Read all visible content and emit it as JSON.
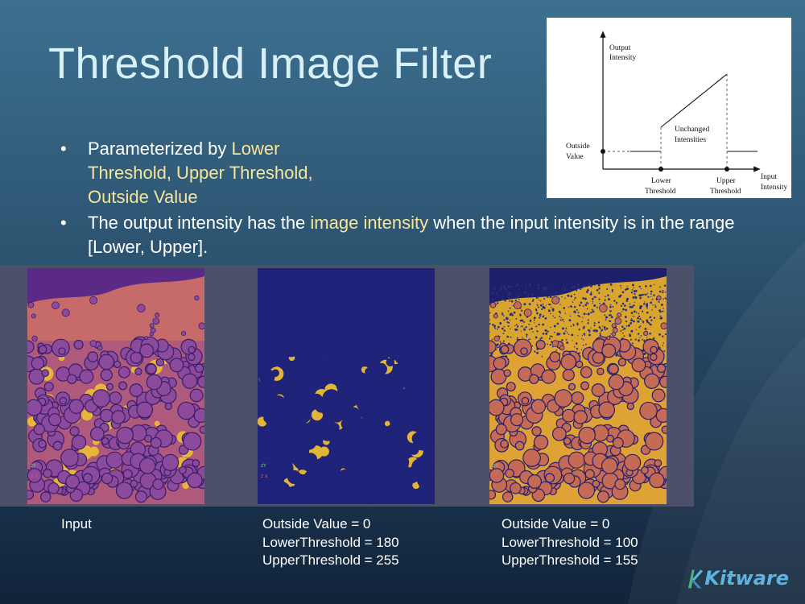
{
  "slide": {
    "title": "Threshold Image Filter",
    "bullets": [
      {
        "lead": "Parameterized by ",
        "highlight": "Lower Threshold, Upper Threshold, Outside Value",
        "tail": ""
      },
      {
        "lead": "The output intensity has the ",
        "highlight": "image intensity",
        "tail": " when the input intensity is in the range [Lower, Upper]."
      }
    ],
    "colors": {
      "title": "#d8f0f8",
      "highlight": "#f6e59a",
      "panel": "#4c5068"
    }
  },
  "diagram": {
    "y_axis_label": [
      "Output",
      "Intensity"
    ],
    "x_axis_label": [
      "Input",
      "Intensity"
    ],
    "outside_label": [
      "Outside",
      "Value"
    ],
    "unchanged_label": [
      "Unchanged",
      "Intensities"
    ],
    "lower_label": [
      "Lower",
      "Threshold"
    ],
    "upper_label": [
      "Upper",
      "Threshold"
    ]
  },
  "images": {
    "input": {
      "caption_lines": [
        "Input"
      ],
      "palette": "plasma"
    },
    "middle": {
      "caption_lines": [
        "Outside Value = 0",
        "LowerThreshold = 180",
        "UpperThreshold = 255"
      ],
      "palette": "thresholded-high"
    },
    "right": {
      "caption_lines": [
        "Outside Value = 0",
        "LowerThreshold = 100",
        "UpperThreshold = 155"
      ],
      "palette": "thresholded-mid"
    }
  },
  "logo": {
    "text": "Kitware",
    "icon": "kitware-logo-icon"
  }
}
